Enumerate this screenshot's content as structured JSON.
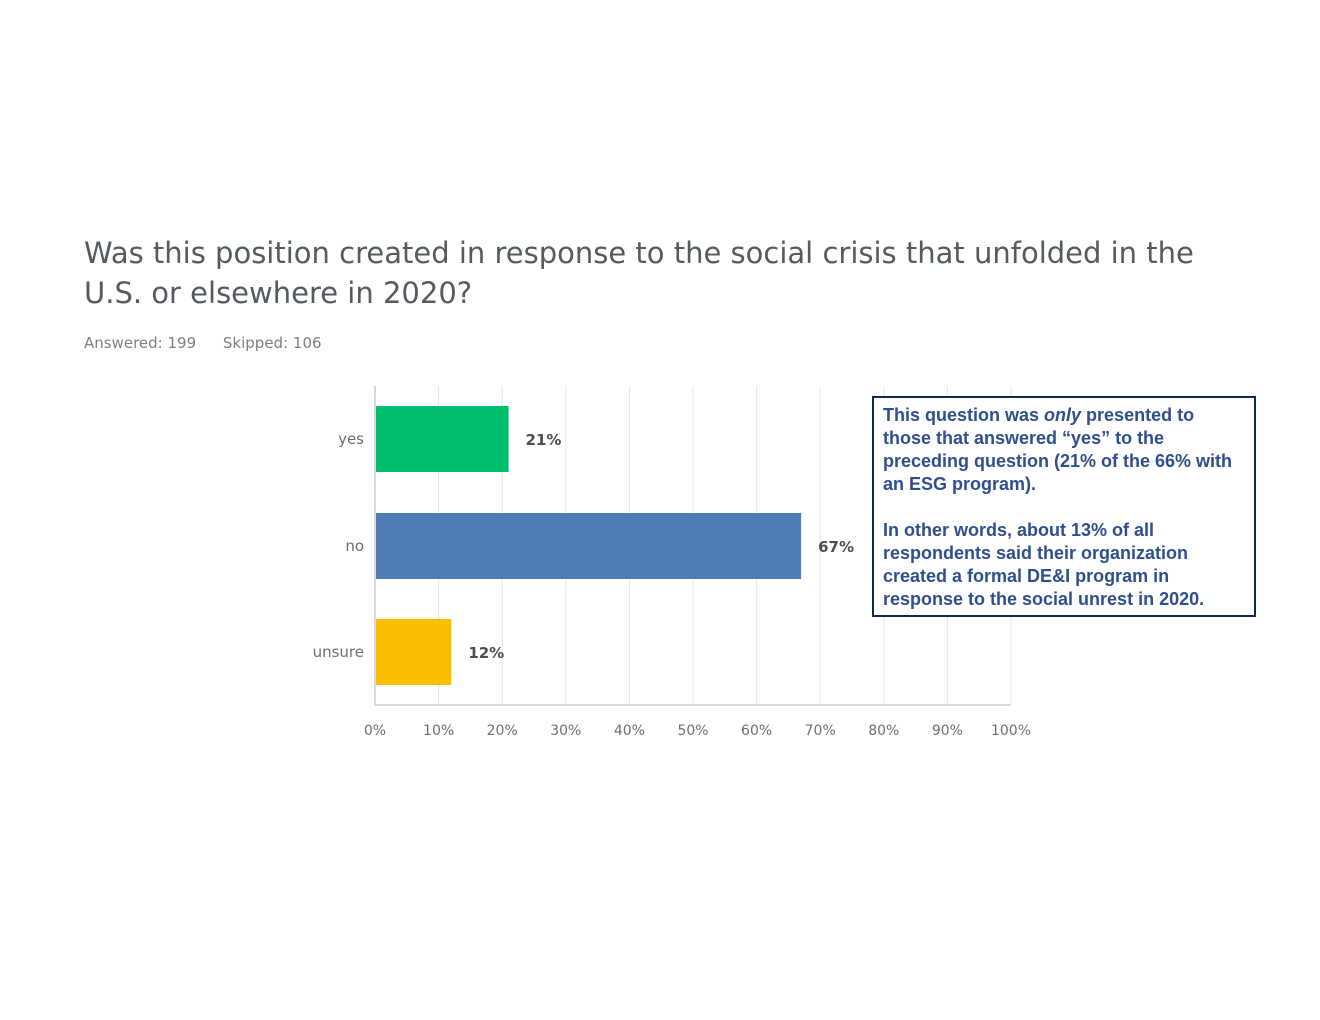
{
  "question": {
    "title": "Was this position created in response to the social crisis that unfolded in the U.S. or elsewhere in 2020?",
    "answered_label": "Answered: 199",
    "skipped_label": "Skipped: 106"
  },
  "note": {
    "p1_before": "This question was ",
    "p1_emphasis": "only",
    "p1_after": " presented to those that answered “yes” to the preceding question (21% of the 66% with an ESG program).",
    "p2": "In other words, about 13% of all respondents said their organization created a formal DE&I program in response to the social unrest in 2020."
  },
  "colors": {
    "yes": "#00bf6f",
    "no": "#507cb6",
    "unsure": "#f9be00",
    "grid": "#e6e6e6",
    "axis": "#cccccc",
    "note_border": "#10294f",
    "note_text": "#2e4f8f"
  },
  "chart_data": {
    "type": "bar",
    "orientation": "horizontal",
    "categories": [
      "yes",
      "no",
      "unsure"
    ],
    "values": [
      21,
      67,
      12
    ],
    "value_labels": [
      "21%",
      "67%",
      "12%"
    ],
    "bar_colors": [
      "#00bf6f",
      "#507cb6",
      "#f9be00"
    ],
    "xlim": [
      0,
      100
    ],
    "xticks": [
      0,
      10,
      20,
      30,
      40,
      50,
      60,
      70,
      80,
      90,
      100
    ],
    "xtick_labels": [
      "0%",
      "10%",
      "20%",
      "30%",
      "40%",
      "50%",
      "60%",
      "70%",
      "80%",
      "90%",
      "100%"
    ],
    "grid": true,
    "legend": "none"
  }
}
